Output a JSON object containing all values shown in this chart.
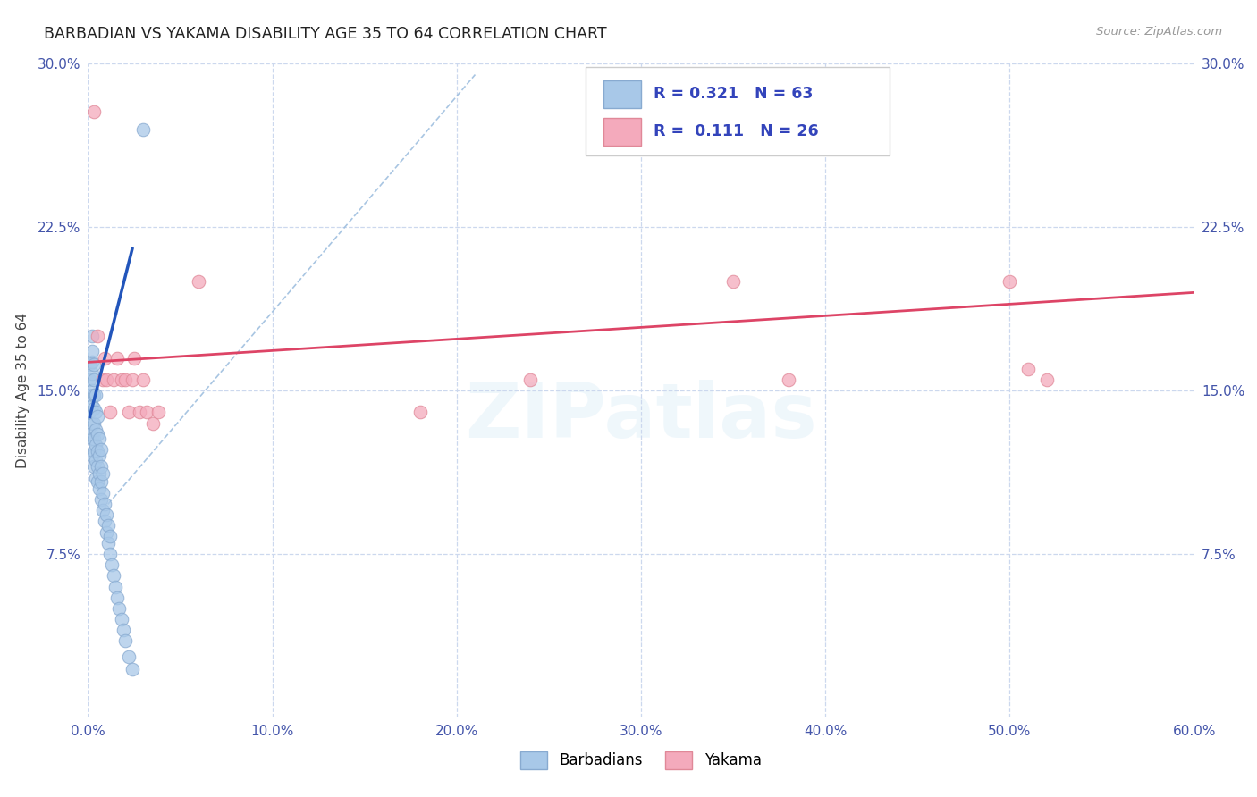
{
  "title": "BARBADIAN VS YAKAMA DISABILITY AGE 35 TO 64 CORRELATION CHART",
  "source": "Source: ZipAtlas.com",
  "ylabel": "Disability Age 35 to 64",
  "xlim": [
    0.0,
    0.6
  ],
  "ylim": [
    0.0,
    0.3
  ],
  "xticks": [
    0.0,
    0.1,
    0.2,
    0.3,
    0.4,
    0.5,
    0.6
  ],
  "xticklabels": [
    "0.0%",
    "10.0%",
    "20.0%",
    "30.0%",
    "40.0%",
    "50.0%",
    "60.0%"
  ],
  "yticks": [
    0.0,
    0.075,
    0.15,
    0.225,
    0.3
  ],
  "yticklabels": [
    "",
    "7.5%",
    "15.0%",
    "22.5%",
    "30.0%"
  ],
  "barbadian_color": "#a8c8e8",
  "barbadian_edge_color": "#88aad0",
  "yakama_color": "#f4aabc",
  "yakama_edge_color": "#e08898",
  "barbadian_R": 0.321,
  "barbadian_N": 63,
  "yakama_R": 0.111,
  "yakama_N": 26,
  "barbadian_line_color": "#2255bb",
  "yakama_line_color": "#dd4466",
  "diagonal_color": "#99bbdd",
  "background_color": "#ffffff",
  "grid_color": "#ccd8ee",
  "watermark_text": "ZIPatlas",
  "barbadian_x": [
    0.001,
    0.001,
    0.001,
    0.001,
    0.001,
    0.002,
    0.002,
    0.002,
    0.002,
    0.002,
    0.002,
    0.002,
    0.002,
    0.002,
    0.003,
    0.003,
    0.003,
    0.003,
    0.003,
    0.003,
    0.003,
    0.003,
    0.004,
    0.004,
    0.004,
    0.004,
    0.004,
    0.004,
    0.005,
    0.005,
    0.005,
    0.005,
    0.005,
    0.006,
    0.006,
    0.006,
    0.006,
    0.007,
    0.007,
    0.007,
    0.007,
    0.008,
    0.008,
    0.008,
    0.009,
    0.009,
    0.01,
    0.01,
    0.011,
    0.011,
    0.012,
    0.012,
    0.013,
    0.014,
    0.015,
    0.016,
    0.017,
    0.018,
    0.019,
    0.02,
    0.022,
    0.024,
    0.03
  ],
  "barbadian_y": [
    0.13,
    0.14,
    0.148,
    0.155,
    0.162,
    0.12,
    0.128,
    0.135,
    0.143,
    0.15,
    0.158,
    0.163,
    0.168,
    0.175,
    0.115,
    0.122,
    0.128,
    0.135,
    0.142,
    0.148,
    0.155,
    0.162,
    0.11,
    0.118,
    0.125,
    0.132,
    0.14,
    0.148,
    0.108,
    0.115,
    0.122,
    0.13,
    0.138,
    0.105,
    0.112,
    0.12,
    0.128,
    0.1,
    0.108,
    0.115,
    0.123,
    0.095,
    0.103,
    0.112,
    0.09,
    0.098,
    0.085,
    0.093,
    0.08,
    0.088,
    0.075,
    0.083,
    0.07,
    0.065,
    0.06,
    0.055,
    0.05,
    0.045,
    0.04,
    0.035,
    0.028,
    0.022,
    0.27
  ],
  "yakama_x": [
    0.003,
    0.005,
    0.008,
    0.009,
    0.01,
    0.012,
    0.014,
    0.016,
    0.018,
    0.02,
    0.022,
    0.024,
    0.025,
    0.028,
    0.03,
    0.032,
    0.035,
    0.038,
    0.06,
    0.18,
    0.24,
    0.35,
    0.38,
    0.5,
    0.51,
    0.52
  ],
  "yakama_y": [
    0.278,
    0.175,
    0.155,
    0.165,
    0.155,
    0.14,
    0.155,
    0.165,
    0.155,
    0.155,
    0.14,
    0.155,
    0.165,
    0.14,
    0.155,
    0.14,
    0.135,
    0.14,
    0.2,
    0.14,
    0.155,
    0.2,
    0.155,
    0.2,
    0.16,
    0.155
  ],
  "barbadian_line_x": [
    0.001,
    0.024
  ],
  "barbadian_line_y": [
    0.138,
    0.215
  ],
  "yakama_line_x": [
    0.0,
    0.6
  ],
  "yakama_line_y": [
    0.163,
    0.195
  ]
}
